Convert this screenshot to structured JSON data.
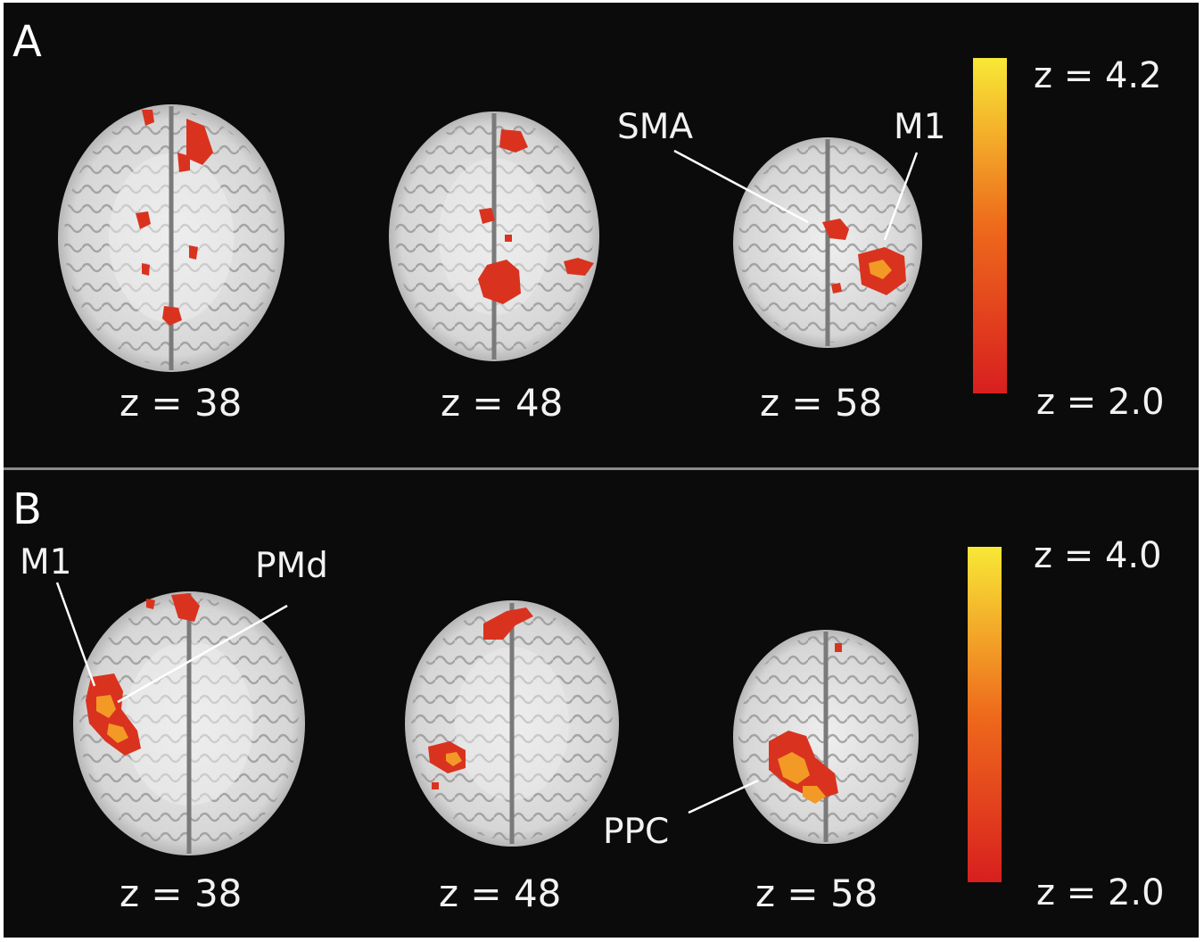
{
  "figure": {
    "panels": [
      {
        "letter": "A",
        "slices": [
          {
            "label": "z = 38"
          },
          {
            "label": "z = 48"
          },
          {
            "label": "z = 58"
          }
        ],
        "annotations": [
          "SMA",
          "M1"
        ],
        "colorbar": {
          "max_label": "z = 4.2",
          "min_label": "z = 2.0",
          "colors": [
            "#d81f1f",
            "#ee6a1c",
            "#f8e836"
          ]
        }
      },
      {
        "letter": "B",
        "slices": [
          {
            "label": "z = 38"
          },
          {
            "label": "z = 48"
          },
          {
            "label": "z = 58"
          }
        ],
        "annotations": [
          "M1",
          "PMd",
          "PPC"
        ],
        "colorbar": {
          "max_label": "z = 4.0",
          "min_label": "z = 2.0",
          "colors": [
            "#d81f1f",
            "#ee6a1c",
            "#f8e836"
          ]
        }
      }
    ],
    "colors": {
      "background": "#0b0b0b",
      "brain": "#e6e6e6",
      "sulcus": "#8f8f8f",
      "activation": "#d9331f",
      "activation_hot": "#f29a25"
    }
  }
}
